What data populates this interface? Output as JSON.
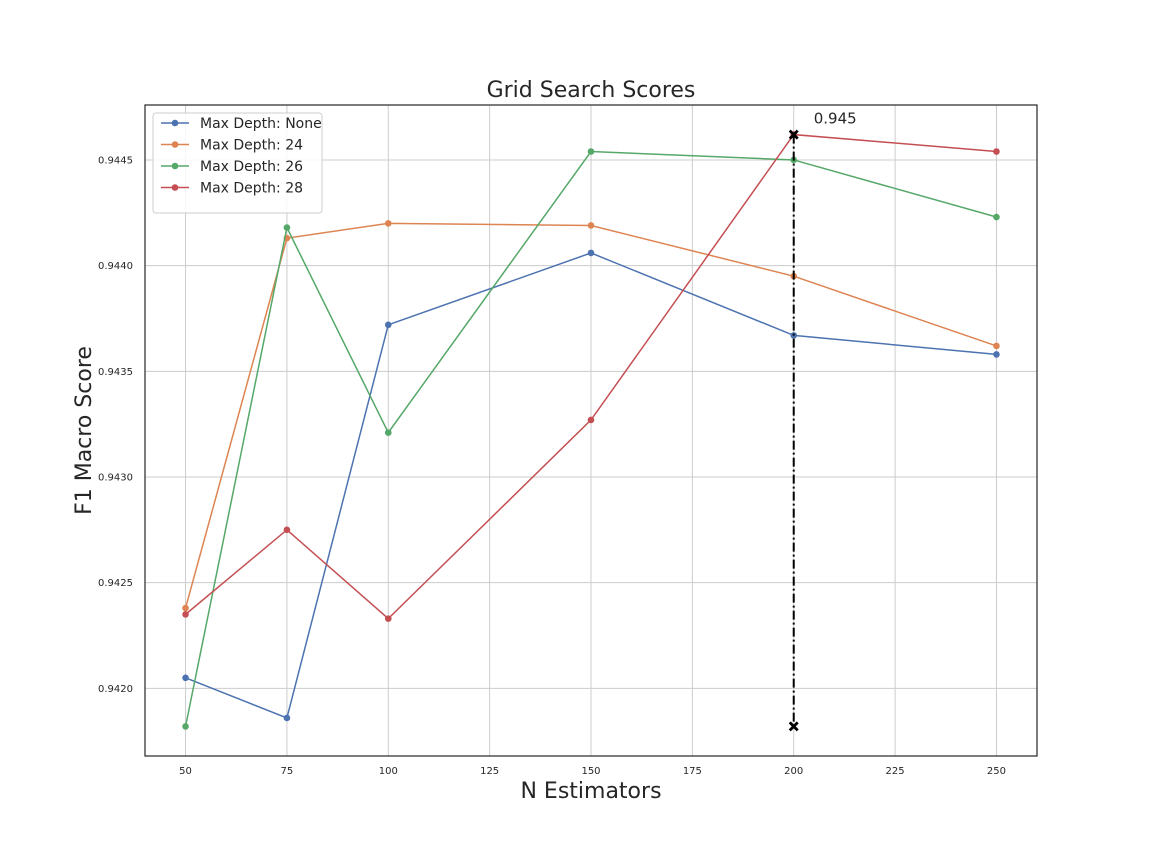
{
  "chart_data": {
    "type": "line",
    "title": "Grid Search Scores",
    "xlabel": "N Estimators",
    "ylabel": "F1 Macro Score",
    "x": [
      50,
      75,
      100,
      150,
      200,
      250
    ],
    "xlim": [
      40,
      260
    ],
    "ylim": [
      0.94168,
      0.94476
    ],
    "xticks": [
      50,
      75,
      100,
      125,
      150,
      175,
      200,
      225,
      250
    ],
    "yticks": [
      0.942,
      0.9425,
      0.943,
      0.9435,
      0.944,
      0.9445
    ],
    "ytick_format": 4,
    "grid": true,
    "legend_position": "upper left",
    "series": [
      {
        "name": "Max Depth: None",
        "color": "#4c72b0",
        "values": [
          0.94205,
          0.94186,
          0.94372,
          0.94406,
          0.94367,
          0.94358
        ]
      },
      {
        "name": "Max Depth: 24",
        "color": "#dd8452",
        "values": [
          0.94238,
          0.94413,
          0.9442,
          0.94419,
          0.94395,
          0.94362
        ]
      },
      {
        "name": "Max Depth: 26",
        "color": "#55a868",
        "values": [
          0.94182,
          0.94418,
          0.94321,
          0.94454,
          0.9445,
          0.94423
        ]
      },
      {
        "name": "Max Depth: 28",
        "color": "#c44e52",
        "values": [
          0.94235,
          0.94275,
          0.94233,
          0.94327,
          0.94462,
          0.94454
        ]
      }
    ],
    "annotation": {
      "text": "0.945",
      "x": 200,
      "y_top": 0.94462,
      "y_bottom": 0.94182,
      "line_color": "#000000"
    }
  }
}
